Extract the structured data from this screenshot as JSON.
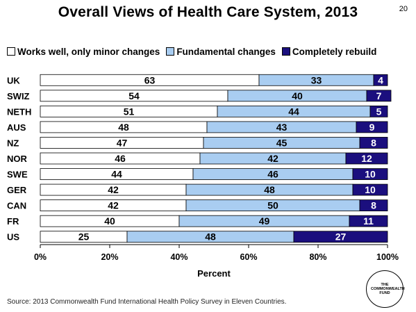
{
  "slide_number": "20",
  "source": "Source: 2013 Commonwealth Fund International Health Policy Survey in Eleven Countries.",
  "logo_text": "THE COMMONWEALTH FUND",
  "colors": {
    "works_well": "#ffffff",
    "fundamental": "#a9cdf1",
    "rebuild": "#1b0f7e"
  },
  "chart_data": {
    "type": "bar",
    "orientation": "horizontal",
    "stacked": true,
    "title": "Overall Views of Health Care System, 2013",
    "xlabel": "Percent",
    "ylabel": "",
    "xlim": [
      0,
      100
    ],
    "x_ticks": [
      "0%",
      "20%",
      "40%",
      "60%",
      "80%",
      "100%"
    ],
    "legend_position": "top",
    "categories": [
      "UK",
      "SWIZ",
      "NETH",
      "AUS",
      "NZ",
      "NOR",
      "SWE",
      "GER",
      "CAN",
      "FR",
      "US"
    ],
    "series": [
      {
        "name": "Works well, only minor changes",
        "values": [
          63,
          54,
          51,
          48,
          47,
          46,
          44,
          42,
          42,
          40,
          25
        ]
      },
      {
        "name": "Fundamental changes",
        "values": [
          33,
          40,
          44,
          43,
          45,
          42,
          46,
          48,
          50,
          49,
          48
        ]
      },
      {
        "name": "Completely rebuild",
        "values": [
          4,
          7,
          5,
          9,
          8,
          12,
          10,
          10,
          8,
          11,
          27
        ]
      }
    ]
  }
}
